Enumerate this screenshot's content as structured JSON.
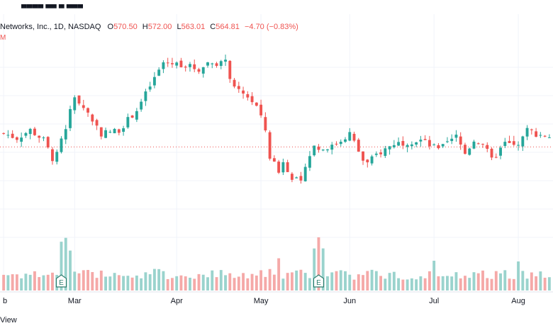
{
  "legend": {
    "symbol_line": "Networks, Inc., 1D, NASDAQ",
    "o_label": "O",
    "o_value": "570.50",
    "h_label": "H",
    "h_value": "572.00",
    "l_label": "L",
    "l_value": "563.01",
    "c_label": "C",
    "c_value": "564.81",
    "change": "−4.70 (−0.83%)",
    "indicator": "M"
  },
  "footer_text": "View",
  "colors": {
    "up": "#26a69a",
    "down": "#ef5350",
    "vol_up": "#9ad3cd",
    "vol_down": "#f5a9a8",
    "grid": "#f0f3fa",
    "price_line": "#ef5350"
  },
  "chart_data": {
    "type": "candlestick",
    "interval": "1D",
    "exchange": "NASDAQ",
    "last_close": 564.81,
    "price_range": [
      420,
      720
    ],
    "volume_range": [
      0,
      100
    ],
    "x_ticks": [
      {
        "label": "b",
        "index": 0
      },
      {
        "label": "Mar",
        "index": 16
      },
      {
        "label": "Apr",
        "index": 39
      },
      {
        "label": "May",
        "index": 58
      },
      {
        "label": "Jun",
        "index": 78
      },
      {
        "label": "Jul",
        "index": 97
      },
      {
        "label": "Aug",
        "index": 116
      }
    ],
    "earnings_markers": [
      {
        "label": "E",
        "index": 13
      },
      {
        "label": "E",
        "index": 71
      }
    ],
    "candles": [],
    "volume": []
  }
}
